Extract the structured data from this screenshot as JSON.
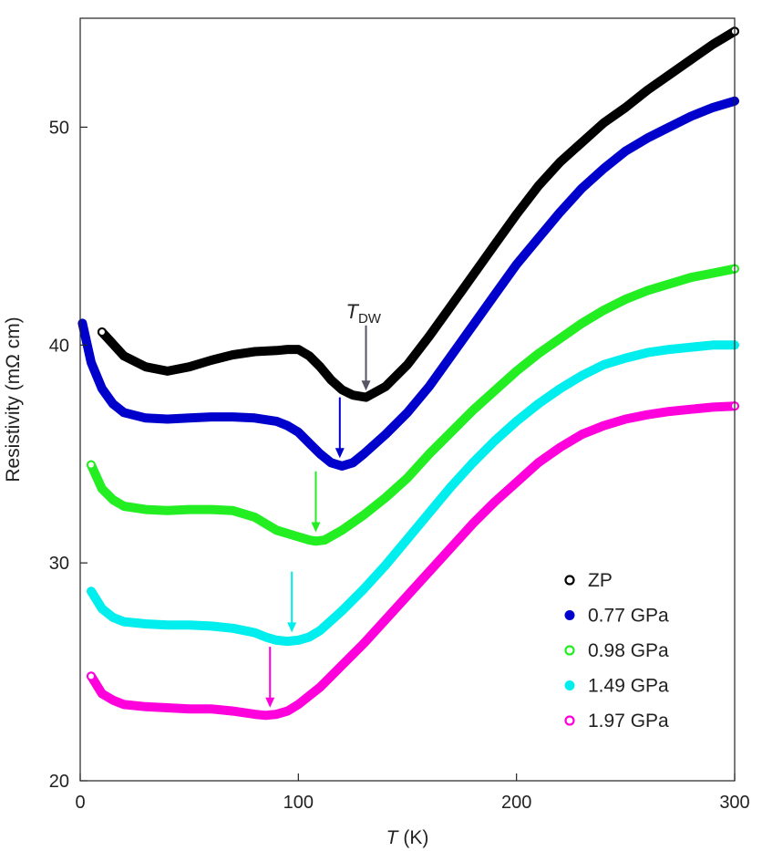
{
  "chart_data": {
    "type": "line",
    "xlabel_var": "T",
    "xlabel_unit": " (K)",
    "ylabel": "Resistivity (mΩ cm)",
    "xlim": [
      0,
      300
    ],
    "ylim": [
      20,
      55
    ],
    "xticks": [
      0,
      100,
      200,
      300
    ],
    "xtick_labels": [
      "0",
      "100",
      "200",
      "300"
    ],
    "yticks": [
      20,
      30,
      40,
      50
    ],
    "ytick_labels": [
      "20",
      "30",
      "40",
      "50"
    ],
    "grid": false,
    "legend_position": "bottom-right",
    "annotation": {
      "main": "T",
      "sub": "DW",
      "x": 131,
      "y": 37.7
    },
    "series": [
      {
        "name": "ZP",
        "color": "#000000",
        "marker": "open-circle",
        "x": [
          10,
          20,
          30,
          40,
          50,
          60,
          70,
          80,
          90,
          95,
          100,
          105,
          110,
          115,
          120,
          125,
          131,
          140,
          150,
          160,
          170,
          180,
          190,
          200,
          210,
          220,
          230,
          240,
          250,
          260,
          270,
          280,
          290,
          300
        ],
        "y": [
          40.6,
          39.5,
          39.0,
          38.8,
          39.0,
          39.3,
          39.55,
          39.7,
          39.75,
          39.8,
          39.8,
          39.5,
          39.0,
          38.4,
          37.95,
          37.7,
          37.6,
          38.1,
          39.1,
          40.4,
          41.8,
          43.2,
          44.6,
          46.0,
          47.3,
          48.4,
          49.3,
          50.2,
          50.9,
          51.7,
          52.4,
          53.1,
          53.8,
          54.4
        ]
      },
      {
        "name": "0.77 GPa",
        "color": "#0000cc",
        "marker": "filled-circle",
        "x": [
          1,
          5,
          10,
          15,
          20,
          30,
          40,
          50,
          60,
          70,
          80,
          90,
          95,
          100,
          105,
          110,
          115,
          120,
          125,
          130,
          140,
          150,
          160,
          170,
          180,
          190,
          200,
          210,
          220,
          230,
          240,
          250,
          260,
          270,
          280,
          290,
          300
        ],
        "y": [
          41.0,
          39.2,
          38.0,
          37.3,
          36.9,
          36.65,
          36.6,
          36.65,
          36.7,
          36.7,
          36.65,
          36.5,
          36.3,
          36.0,
          35.5,
          35.0,
          34.6,
          34.45,
          34.6,
          35.0,
          35.9,
          36.9,
          38.1,
          39.5,
          40.9,
          42.3,
          43.7,
          44.9,
          46.1,
          47.2,
          48.1,
          48.9,
          49.5,
          50.0,
          50.5,
          50.9,
          51.2
        ]
      },
      {
        "name": "0.98 GPa",
        "color": "#22ee22",
        "marker": "open-circle",
        "x": [
          5,
          10,
          15,
          20,
          30,
          40,
          50,
          60,
          70,
          80,
          90,
          100,
          105,
          108,
          112,
          120,
          130,
          140,
          150,
          160,
          170,
          180,
          190,
          200,
          210,
          220,
          230,
          240,
          250,
          260,
          270,
          280,
          290,
          300
        ],
        "y": [
          34.5,
          33.4,
          32.9,
          32.6,
          32.45,
          32.4,
          32.45,
          32.45,
          32.4,
          32.1,
          31.5,
          31.2,
          31.05,
          31.0,
          31.05,
          31.5,
          32.2,
          33.0,
          33.9,
          35.0,
          36.0,
          37.0,
          37.9,
          38.8,
          39.6,
          40.3,
          41.0,
          41.6,
          42.1,
          42.5,
          42.8,
          43.1,
          43.3,
          43.5
        ]
      },
      {
        "name": "1.49 GPa",
        "color": "#00eeee",
        "marker": "filled-circle",
        "x": [
          5,
          10,
          15,
          20,
          30,
          40,
          50,
          60,
          70,
          80,
          85,
          90,
          95,
          100,
          105,
          110,
          120,
          130,
          140,
          150,
          160,
          170,
          180,
          190,
          200,
          210,
          220,
          230,
          240,
          250,
          260,
          270,
          280,
          290,
          300
        ],
        "y": [
          28.7,
          27.9,
          27.5,
          27.3,
          27.2,
          27.15,
          27.15,
          27.1,
          27.0,
          26.8,
          26.6,
          26.45,
          26.4,
          26.45,
          26.6,
          26.9,
          27.8,
          28.8,
          29.9,
          31.1,
          32.3,
          33.5,
          34.6,
          35.6,
          36.5,
          37.3,
          38.0,
          38.6,
          39.1,
          39.4,
          39.65,
          39.8,
          39.9,
          40.0,
          40.0
        ]
      },
      {
        "name": "1.97 GPa",
        "color": "#ff00dd",
        "marker": "open-circle",
        "x": [
          5,
          10,
          15,
          20,
          30,
          40,
          50,
          60,
          70,
          80,
          85,
          90,
          95,
          100,
          110,
          120,
          130,
          140,
          150,
          160,
          170,
          180,
          190,
          200,
          210,
          220,
          230,
          240,
          250,
          260,
          270,
          280,
          290,
          300
        ],
        "y": [
          24.8,
          24.0,
          23.7,
          23.5,
          23.4,
          23.35,
          23.3,
          23.3,
          23.2,
          23.05,
          23.0,
          23.05,
          23.2,
          23.5,
          24.3,
          25.3,
          26.3,
          27.4,
          28.5,
          29.6,
          30.7,
          31.8,
          32.8,
          33.7,
          34.6,
          35.3,
          35.9,
          36.3,
          36.6,
          36.8,
          36.95,
          37.05,
          37.15,
          37.2
        ]
      }
    ],
    "arrows": [
      {
        "series": "ZP",
        "color": "#555566",
        "x": 131,
        "y": 37.7,
        "length": 3.2
      },
      {
        "series": "0.77 GPa",
        "color": "#0000cc",
        "x": 119,
        "y": 34.6,
        "length": 3.0
      },
      {
        "series": "0.98 GPa",
        "color": "#22ee22",
        "x": 108,
        "y": 31.2,
        "length": 3.0
      },
      {
        "series": "1.49 GPa",
        "color": "#00eeee",
        "x": 97,
        "y": 26.6,
        "length": 3.0
      },
      {
        "series": "1.97 GPa",
        "color": "#ff00dd",
        "x": 87,
        "y": 23.15,
        "length": 3.0
      }
    ]
  }
}
